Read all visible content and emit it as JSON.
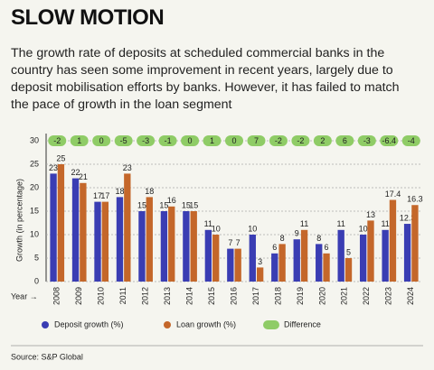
{
  "chart_data": {
    "type": "bar",
    "title": "SLOW MOTION",
    "subtitle_lines": [
      "The growth rate of deposits at scheduled commercial banks in the",
      "country has seen some improvement in recent years, largely due to",
      "deposit mobilisation efforts by banks. However, it has failed to match",
      "the pace of growth in the loan segment"
    ],
    "x_label": "Year →",
    "y_label": "Growth (in percentage)",
    "categories": [
      "2008",
      "2009",
      "2010",
      "2011",
      "2012",
      "2013",
      "2014",
      "2015",
      "2016",
      "2017",
      "2018",
      "2019",
      "2020",
      "2021",
      "2022",
      "2023",
      "2024"
    ],
    "series": [
      {
        "name": "Deposit growth (%)",
        "color": "#3a3db3",
        "values": [
          23,
          22,
          17,
          18,
          15,
          15,
          15,
          11,
          7,
          10,
          6,
          9,
          8,
          11,
          10,
          11,
          12.3
        ]
      },
      {
        "name": "Loan growth (%)",
        "color": "#c4672a",
        "values": [
          25,
          21,
          17,
          23,
          18,
          16,
          15,
          10,
          7,
          3,
          8,
          11,
          6,
          5,
          13,
          17.4,
          16.3
        ]
      }
    ],
    "difference": {
      "name": "Difference",
      "color": "#8fcc66",
      "values": [
        -2,
        1,
        0,
        -5,
        -3,
        -1,
        0,
        1,
        0,
        7,
        -2,
        -2,
        2,
        6,
        -3,
        -6.4,
        -4
      ]
    },
    "ylim": [
      0,
      30
    ],
    "yticks": [
      0,
      5,
      10,
      15,
      20,
      25,
      30
    ],
    "grid": true,
    "source": "Source: S&P Global"
  }
}
